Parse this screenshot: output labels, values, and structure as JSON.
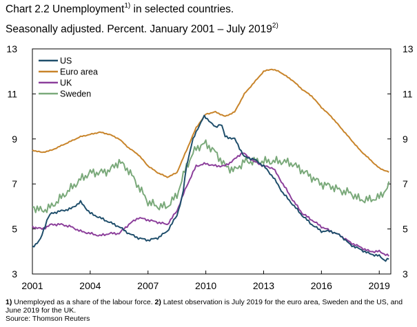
{
  "title": {
    "line1_pre": "Chart 2.2 Unemployment",
    "line1_sup": "1)",
    "line1_post": " in selected countries.",
    "line2_pre": "Seasonally adjusted. Percent. January 2001 – July 2019",
    "line2_sup": "2)"
  },
  "footnotes": {
    "n1_num": "1)",
    "n1_text": " Unemployed as a share of the labour force.  ",
    "n2_num": "2)",
    "n2_text": " Latest observation is July 2019 for the euro area, Sweden and the US, and June 2019 for the UK.",
    "source": "Source: Thomson Reuters"
  },
  "chart_data": {
    "type": "line",
    "x_ticks": [
      "2001",
      "2004",
      "2007",
      "2010",
      "2013",
      "2016",
      "2019"
    ],
    "x_range": [
      2001,
      2019.6
    ],
    "ylim": [
      3,
      13
    ],
    "y_ticks_left": [
      "13",
      "11",
      "9",
      "7",
      "5",
      "3"
    ],
    "y_ticks_right": [
      "13",
      "11",
      "9",
      "7",
      "5",
      "3"
    ],
    "legend_position": "top-left",
    "series": [
      {
        "name": "US",
        "color": "#1f4e6b",
        "points": [
          [
            2001.0,
            4.2
          ],
          [
            2001.4,
            4.5
          ],
          [
            2001.8,
            5.5
          ],
          [
            2002.0,
            5.7
          ],
          [
            2002.5,
            5.8
          ],
          [
            2003.0,
            5.9
          ],
          [
            2003.5,
            6.2
          ],
          [
            2004.0,
            5.7
          ],
          [
            2004.5,
            5.5
          ],
          [
            2005.0,
            5.3
          ],
          [
            2005.5,
            5.1
          ],
          [
            2006.0,
            4.8
          ],
          [
            2006.5,
            4.6
          ],
          [
            2007.0,
            4.5
          ],
          [
            2007.5,
            4.6
          ],
          [
            2008.0,
            4.9
          ],
          [
            2008.5,
            5.6
          ],
          [
            2008.8,
            6.5
          ],
          [
            2009.0,
            7.8
          ],
          [
            2009.3,
            8.9
          ],
          [
            2009.6,
            9.5
          ],
          [
            2009.9,
            10.0
          ],
          [
            2010.2,
            9.8
          ],
          [
            2010.5,
            9.5
          ],
          [
            2010.8,
            9.7
          ],
          [
            2011.0,
            9.1
          ],
          [
            2011.5,
            9.0
          ],
          [
            2012.0,
            8.2
          ],
          [
            2012.5,
            8.1
          ],
          [
            2013.0,
            7.8
          ],
          [
            2013.5,
            7.3
          ],
          [
            2014.0,
            6.6
          ],
          [
            2014.5,
            6.1
          ],
          [
            2015.0,
            5.6
          ],
          [
            2015.5,
            5.2
          ],
          [
            2016.0,
            4.9
          ],
          [
            2016.5,
            4.9
          ],
          [
            2017.0,
            4.7
          ],
          [
            2017.5,
            4.3
          ],
          [
            2018.0,
            4.1
          ],
          [
            2018.5,
            3.9
          ],
          [
            2019.0,
            3.8
          ],
          [
            2019.3,
            3.6
          ],
          [
            2019.58,
            3.7
          ]
        ]
      },
      {
        "name": "Euro area",
        "color": "#c8842a",
        "points": [
          [
            2001.0,
            8.5
          ],
          [
            2001.5,
            8.4
          ],
          [
            2002.0,
            8.5
          ],
          [
            2002.5,
            8.7
          ],
          [
            2003.0,
            8.9
          ],
          [
            2003.5,
            9.1
          ],
          [
            2004.0,
            9.2
          ],
          [
            2004.5,
            9.3
          ],
          [
            2005.0,
            9.2
          ],
          [
            2005.5,
            9.0
          ],
          [
            2006.0,
            8.6
          ],
          [
            2006.5,
            8.3
          ],
          [
            2007.0,
            7.8
          ],
          [
            2007.5,
            7.5
          ],
          [
            2008.0,
            7.3
          ],
          [
            2008.5,
            7.5
          ],
          [
            2009.0,
            8.5
          ],
          [
            2009.5,
            9.5
          ],
          [
            2010.0,
            10.1
          ],
          [
            2010.5,
            10.2
          ],
          [
            2011.0,
            10.0
          ],
          [
            2011.5,
            10.2
          ],
          [
            2012.0,
            11.0
          ],
          [
            2012.5,
            11.5
          ],
          [
            2013.0,
            12.0
          ],
          [
            2013.4,
            12.1
          ],
          [
            2013.8,
            12.0
          ],
          [
            2014.5,
            11.6
          ],
          [
            2015.0,
            11.2
          ],
          [
            2015.5,
            10.9
          ],
          [
            2016.0,
            10.4
          ],
          [
            2016.5,
            10.0
          ],
          [
            2017.0,
            9.5
          ],
          [
            2017.5,
            9.0
          ],
          [
            2018.0,
            8.5
          ],
          [
            2018.5,
            8.1
          ],
          [
            2019.0,
            7.7
          ],
          [
            2019.58,
            7.5
          ]
        ]
      },
      {
        "name": "UK",
        "color": "#8c3f9b",
        "points": [
          [
            2001.0,
            5.1
          ],
          [
            2001.5,
            5.0
          ],
          [
            2002.0,
            5.2
          ],
          [
            2002.5,
            5.2
          ],
          [
            2003.0,
            5.1
          ],
          [
            2003.5,
            4.9
          ],
          [
            2004.0,
            4.8
          ],
          [
            2004.5,
            4.7
          ],
          [
            2005.0,
            4.8
          ],
          [
            2005.5,
            4.8
          ],
          [
            2006.0,
            5.2
          ],
          [
            2006.5,
            5.5
          ],
          [
            2007.0,
            5.4
          ],
          [
            2007.5,
            5.3
          ],
          [
            2008.0,
            5.2
          ],
          [
            2008.5,
            5.8
          ],
          [
            2009.0,
            6.9
          ],
          [
            2009.5,
            7.8
          ],
          [
            2010.0,
            7.9
          ],
          [
            2010.5,
            7.8
          ],
          [
            2011.0,
            7.8
          ],
          [
            2011.5,
            8.1
          ],
          [
            2011.9,
            8.4
          ],
          [
            2012.5,
            8.0
          ],
          [
            2013.0,
            7.8
          ],
          [
            2013.5,
            7.7
          ],
          [
            2014.0,
            7.0
          ],
          [
            2014.5,
            6.3
          ],
          [
            2015.0,
            5.7
          ],
          [
            2015.5,
            5.4
          ],
          [
            2016.0,
            5.1
          ],
          [
            2016.5,
            4.9
          ],
          [
            2017.0,
            4.7
          ],
          [
            2017.5,
            4.4
          ],
          [
            2018.0,
            4.2
          ],
          [
            2018.5,
            4.0
          ],
          [
            2019.0,
            4.0
          ],
          [
            2019.5,
            3.8
          ]
        ]
      },
      {
        "name": "Sweden",
        "color": "#7aa97a",
        "points": [
          [
            2001.0,
            6.0
          ],
          [
            2001.5,
            5.8
          ],
          [
            2002.0,
            6.0
          ],
          [
            2002.5,
            6.4
          ],
          [
            2003.0,
            6.8
          ],
          [
            2003.5,
            7.2
          ],
          [
            2004.0,
            7.5
          ],
          [
            2004.5,
            7.5
          ],
          [
            2005.0,
            7.6
          ],
          [
            2005.5,
            8.0
          ],
          [
            2006.0,
            7.6
          ],
          [
            2006.5,
            6.9
          ],
          [
            2007.0,
            6.2
          ],
          [
            2007.5,
            6.0
          ],
          [
            2008.0,
            6.0
          ],
          [
            2008.5,
            6.5
          ],
          [
            2009.0,
            7.8
          ],
          [
            2009.5,
            8.6
          ],
          [
            2010.0,
            8.8
          ],
          [
            2010.5,
            8.4
          ],
          [
            2011.0,
            7.8
          ],
          [
            2011.5,
            7.6
          ],
          [
            2012.0,
            8.0
          ],
          [
            2012.5,
            8.0
          ],
          [
            2013.0,
            8.0
          ],
          [
            2013.5,
            8.0
          ],
          [
            2014.0,
            8.0
          ],
          [
            2014.5,
            7.9
          ],
          [
            2015.0,
            7.6
          ],
          [
            2015.5,
            7.3
          ],
          [
            2016.0,
            7.0
          ],
          [
            2016.5,
            6.9
          ],
          [
            2017.0,
            6.7
          ],
          [
            2017.5,
            6.6
          ],
          [
            2018.0,
            6.3
          ],
          [
            2018.5,
            6.3
          ],
          [
            2019.0,
            6.4
          ],
          [
            2019.58,
            7.0
          ]
        ]
      }
    ]
  }
}
